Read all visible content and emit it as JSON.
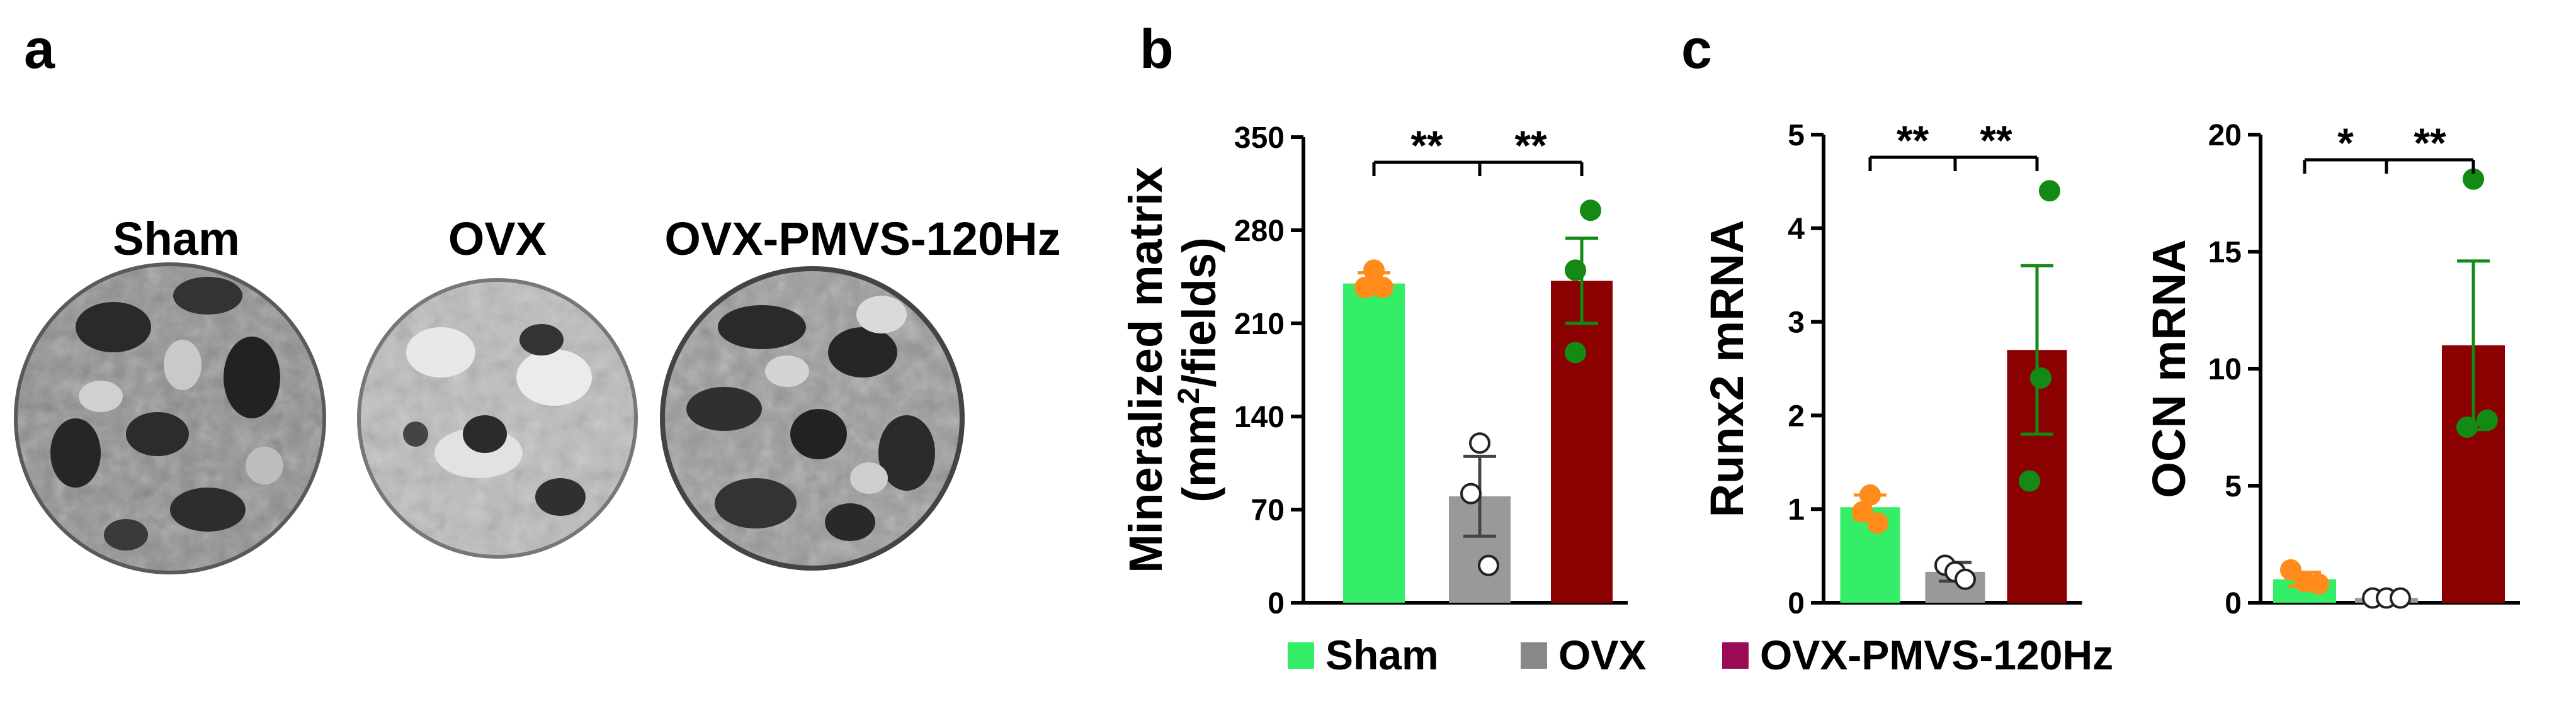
{
  "figure": {
    "panel_a": {
      "letter": "a",
      "dishes": [
        "Sham",
        "OVX",
        "OVX-PMVS-120Hz"
      ]
    },
    "panel_b": {
      "letter": "b"
    },
    "panel_c": {
      "letter": "c"
    }
  },
  "legend": [
    {
      "label": "Sham",
      "color": "#33ee66"
    },
    {
      "label": "OVX",
      "color": "#888888"
    },
    {
      "label": "OVX-PMVS-120Hz",
      "color": "#9b0a55"
    }
  ],
  "colors": {
    "sham_bar": "#33ee66",
    "ovx_bar": "#999999",
    "pmvs_bar": "#8b0000",
    "sham_point": "#ff8c1a",
    "pmvs_point": "#138a13"
  },
  "chart_data": [
    {
      "type": "bar",
      "panel": "b",
      "title": "",
      "ylabel": "Mineralized matrix",
      "ylabel_line2": "(mm",
      "ylabel_sup": "2",
      "ylabel_line2_end": "/fields)",
      "categories": [
        "Sham",
        "OVX",
        "OVX-PMVS-120Hz"
      ],
      "values": [
        240,
        80,
        242
      ],
      "errors": [
        8,
        30,
        32
      ],
      "points": [
        [
          250,
          237,
          237
        ],
        [
          120,
          82,
          28
        ],
        [
          295,
          250,
          188
        ]
      ],
      "ylim": [
        0,
        350
      ],
      "yticks": [
        0,
        70,
        140,
        210,
        280,
        350
      ],
      "ytick_labels": [
        "0",
        "70",
        "140",
        "210",
        "280",
        "350"
      ],
      "significance": [
        {
          "from": 0,
          "to": 1,
          "label": "**"
        },
        {
          "from": 1,
          "to": 2,
          "label": "**"
        }
      ]
    },
    {
      "type": "bar",
      "panel": "c-left",
      "title": "",
      "ylabel": "Runx2 mRNA",
      "categories": [
        "Sham",
        "OVX",
        "OVX-PMVS-120Hz"
      ],
      "values": [
        1.02,
        0.33,
        2.7
      ],
      "errors": [
        0.13,
        0.1,
        0.9
      ],
      "points": [
        [
          1.15,
          0.97,
          0.85
        ],
        [
          0.4,
          0.33,
          0.25
        ],
        [
          4.4,
          2.4,
          1.3
        ]
      ],
      "ylim": [
        0,
        5
      ],
      "yticks": [
        0,
        1,
        2,
        3,
        4,
        5
      ],
      "ytick_labels": [
        "0",
        "1",
        "2",
        "3",
        "4",
        "5"
      ],
      "significance": [
        {
          "from": 0,
          "to": 1,
          "label": "**"
        },
        {
          "from": 1,
          "to": 2,
          "label": "**"
        }
      ]
    },
    {
      "type": "bar",
      "panel": "c-right",
      "title": "",
      "ylabel": "OCN mRNA",
      "categories": [
        "Sham",
        "OVX",
        "OVX-PMVS-120Hz"
      ],
      "values": [
        1.0,
        0.2,
        11.0
      ],
      "errors": [
        0.3,
        0.06,
        3.6
      ],
      "points": [
        [
          1.4,
          0.9,
          0.8
        ],
        [
          0.2,
          0.2,
          0.2
        ],
        [
          18.1,
          7.5,
          7.8
        ]
      ],
      "ylim": [
        0,
        20
      ],
      "yticks": [
        0,
        5,
        10,
        15,
        20
      ],
      "ytick_labels": [
        "0",
        "5",
        "10",
        "15",
        "20"
      ],
      "significance": [
        {
          "from": 0,
          "to": 1,
          "label": "*"
        },
        {
          "from": 1,
          "to": 2,
          "label": "**"
        }
      ]
    }
  ]
}
